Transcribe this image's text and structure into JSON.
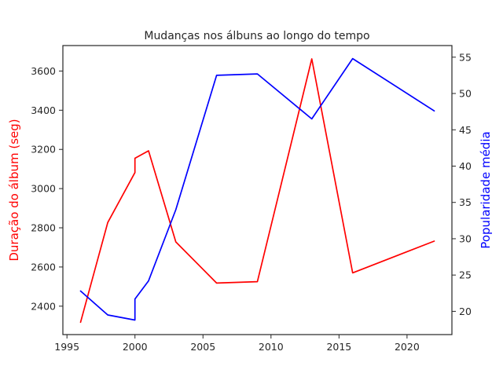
{
  "chart_data": {
    "type": "line",
    "title": "Mudanças nos álbuns ao longo do tempo",
    "xlim": [
      1994.7,
      2023.3
    ],
    "x_ticks": [
      1995,
      2000,
      2005,
      2010,
      2015,
      2020
    ],
    "left_axis": {
      "label": "Duração do álbum (seg)",
      "color": "#ff0000",
      "ylim": [
        2255,
        3730
      ],
      "ticks": [
        2400,
        2600,
        2800,
        3000,
        3200,
        3400,
        3600
      ]
    },
    "right_axis": {
      "label": "Popularidade média",
      "color": "#0000ff",
      "ylim": [
        16.8,
        56.6
      ],
      "ticks": [
        20,
        25,
        30,
        35,
        40,
        45,
        50,
        55
      ]
    },
    "series": [
      {
        "axis": "left",
        "color": "#ff0000",
        "x": [
          1996,
          1998,
          2000,
          2000,
          2001,
          2003,
          2006,
          2009,
          2013,
          2016,
          2022
        ],
        "y": [
          2318,
          2827,
          3082,
          3155,
          3193,
          2728,
          2518,
          2525,
          3662,
          2570,
          2732
        ]
      },
      {
        "axis": "right",
        "color": "#0000ff",
        "x": [
          1996,
          1998,
          2000,
          2000,
          2001,
          2003,
          2006,
          2009,
          2013,
          2016,
          2022
        ],
        "y": [
          22.8,
          19.5,
          18.8,
          21.7,
          24.2,
          34.0,
          52.5,
          52.7,
          46.5,
          54.8,
          47.6
        ]
      }
    ],
    "grid": false,
    "legend": "none"
  }
}
